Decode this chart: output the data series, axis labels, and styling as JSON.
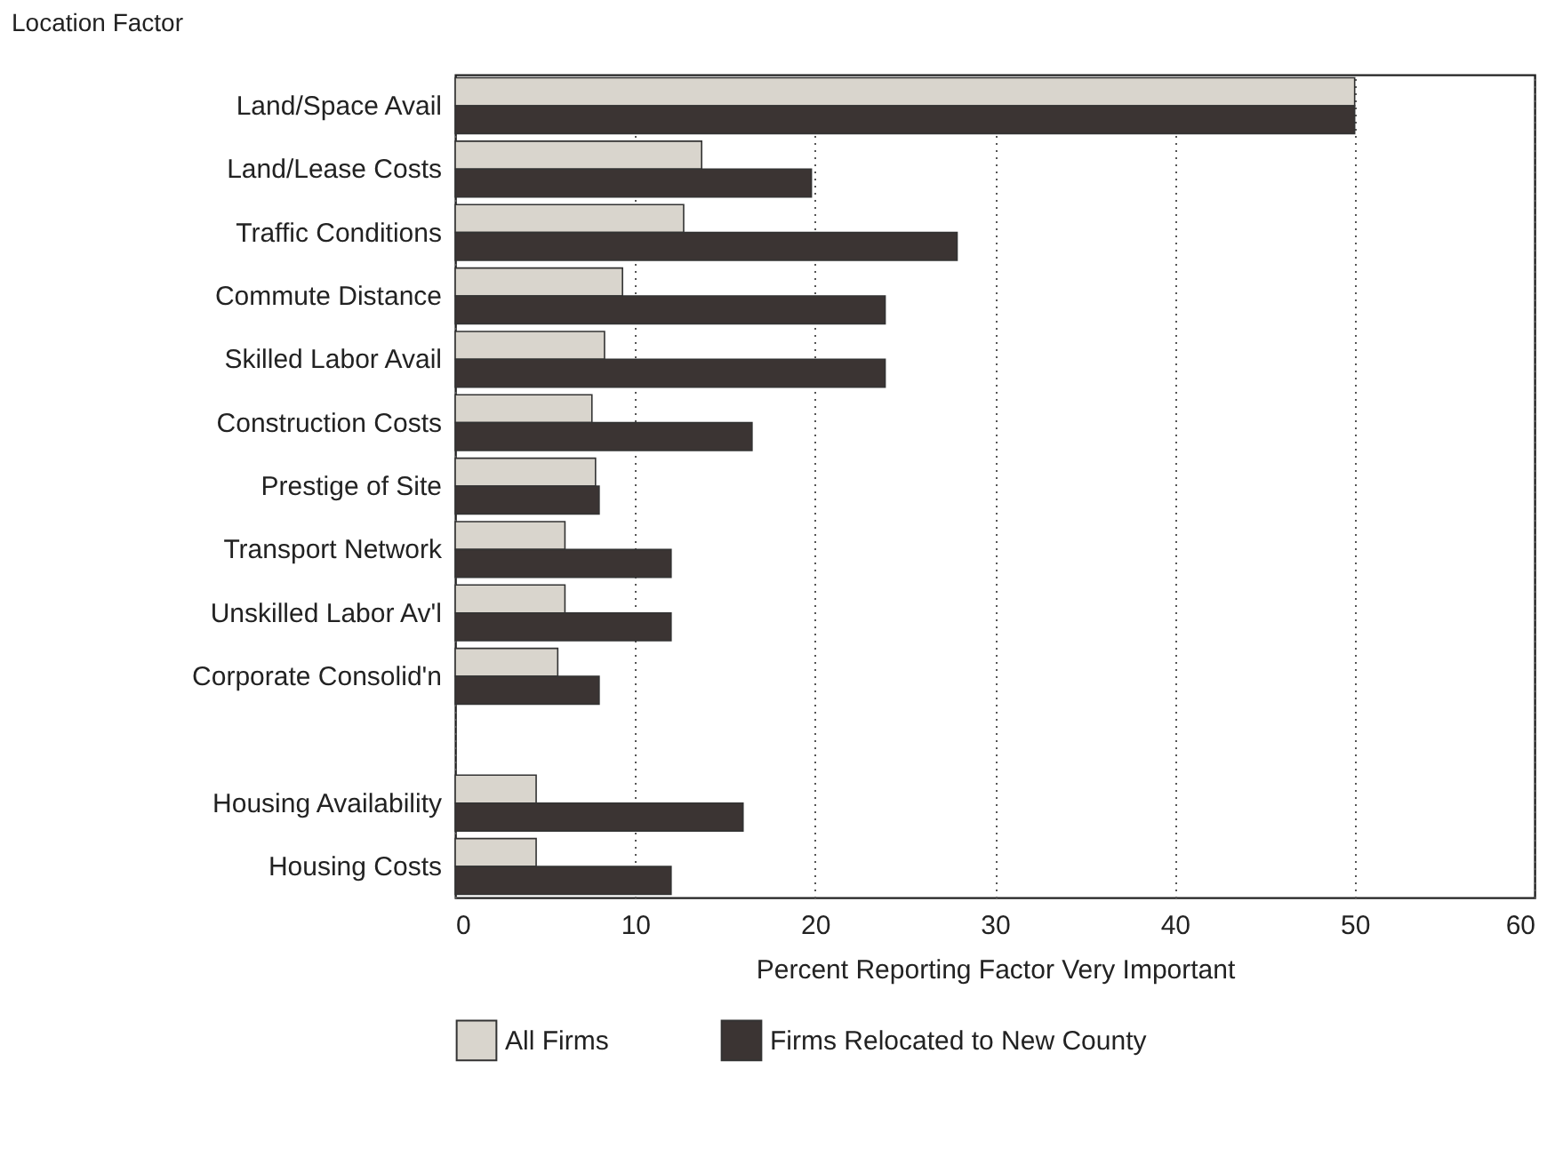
{
  "chart_data": {
    "type": "bar",
    "orientation": "horizontal",
    "xlabel": "Percent Reporting Factor Very Important",
    "ylabel": "Location Factor",
    "categories": [
      "Land/Space Avail",
      "Land/Lease Costs",
      "Traffic Conditions",
      "Commute Distance",
      "Skilled Labor Avail",
      "Construction Costs",
      "Prestige of Site",
      "Transport Network",
      "Unskilled Labor Av'l",
      "Corporate Consolid'n",
      null,
      "Housing Availability",
      "Housing Costs"
    ],
    "series": [
      {
        "name": "All Firms",
        "color": "#d9d5cd",
        "values": [
          50,
          13.7,
          12.7,
          9.3,
          8.3,
          7.6,
          7.8,
          6.1,
          6.1,
          5.7,
          null,
          4.5,
          4.5
        ]
      },
      {
        "name": "Firms Relocated to New County",
        "color": "#3b3433",
        "values": [
          50,
          19.8,
          27.9,
          23.9,
          23.9,
          16.5,
          8,
          12,
          12,
          8,
          null,
          16,
          12
        ]
      }
    ],
    "xlim": [
      0,
      60
    ],
    "xticks": [
      0,
      10,
      20,
      30,
      40,
      50,
      60
    ],
    "grid": "x",
    "legend": "bottom"
  }
}
